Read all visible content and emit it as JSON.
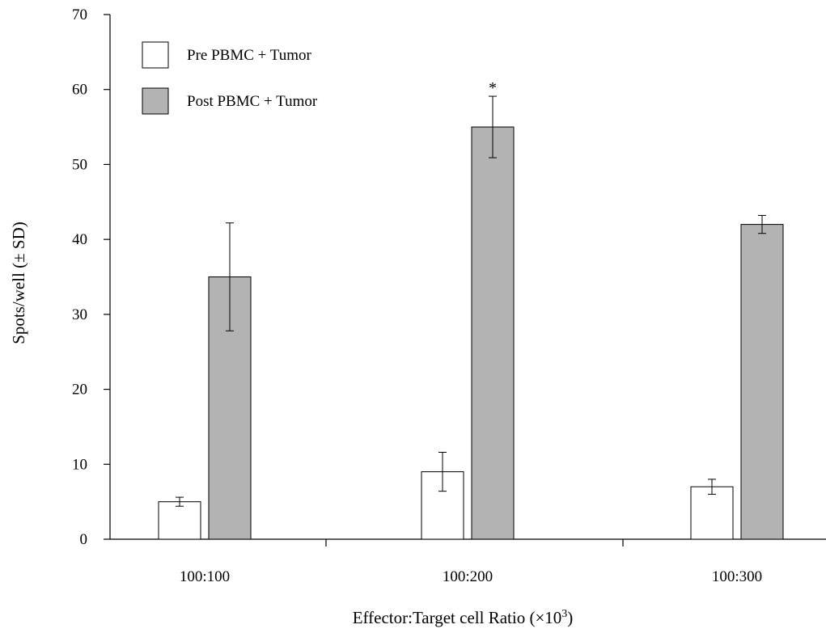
{
  "chart_data": {
    "type": "bar",
    "categories": [
      "100:100",
      "100:200",
      "100:300"
    ],
    "series": [
      {
        "name": "Pre PBMC + Tumor",
        "color": "#ffffff",
        "values": [
          5,
          9,
          7
        ],
        "errors": [
          0.6,
          2.6,
          1.0
        ]
      },
      {
        "name": "Post PBMC + Tumor",
        "color": "#b3b3b3",
        "values": [
          35,
          55,
          42
        ],
        "errors": [
          7.2,
          4.1,
          1.2
        ]
      }
    ],
    "xlabel": "Effector:Target cell Ratio (×10",
    "xlabel_sup": "3",
    "xlabel_end": ")",
    "ylabel": "Spots/well (± SD)",
    "ylim": [
      0,
      70
    ],
    "yticks": [
      "0",
      "10",
      "20",
      "30",
      "40",
      "50",
      "60",
      "70"
    ],
    "annotations": [
      {
        "text": "*",
        "category": "100:200",
        "series": "Post PBMC + Tumor"
      }
    ],
    "legend_position": "top-left",
    "grid": false
  }
}
